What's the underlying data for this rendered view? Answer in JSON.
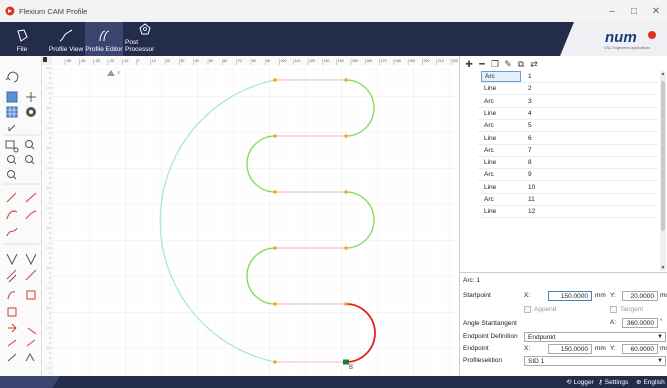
{
  "window": {
    "title": "Flexium CAM Profile"
  },
  "ribbon": {
    "tabs": [
      {
        "label": "File"
      },
      {
        "label": "Profile View"
      },
      {
        "label": "Profile Editor"
      },
      {
        "label": "Post Processor"
      }
    ],
    "active_tab": "Profile Editor",
    "brand": {
      "name": "num",
      "tagline": "CNC Engineered applications"
    }
  },
  "ruler": {
    "marks": [
      "-50",
      "-40",
      "-30",
      "-20",
      "-10",
      "0",
      "10",
      "20",
      "30",
      "40",
      "50",
      "60",
      "70",
      "80",
      "90",
      "100",
      "110",
      "120",
      "130",
      "140",
      "150",
      "160",
      "170",
      "180",
      "190",
      "200",
      "210",
      "220"
    ],
    "y_label": "Y"
  },
  "segments": [
    {
      "type": "Arc",
      "num": "1"
    },
    {
      "type": "Line",
      "num": "2"
    },
    {
      "type": "Arc",
      "num": "3"
    },
    {
      "type": "Line",
      "num": "4"
    },
    {
      "type": "Arc",
      "num": "5"
    },
    {
      "type": "Line",
      "num": "6"
    },
    {
      "type": "Arc",
      "num": "7"
    },
    {
      "type": "Line",
      "num": "8"
    },
    {
      "type": "Arc",
      "num": "9"
    },
    {
      "type": "Line",
      "num": "10"
    },
    {
      "type": "Arc",
      "num": "11"
    },
    {
      "type": "Line",
      "num": "12"
    }
  ],
  "properties": {
    "header": "Arc: 1",
    "startpoint_label": "Startpoint",
    "x_label": "X:",
    "y_label": "Y:",
    "a_label": "A:",
    "unit_mm": "mm",
    "unit_deg": "°",
    "start_x": "150.0000",
    "start_y": "20.0000",
    "append_label": "Append",
    "tangent_label": "Tangent",
    "angle_label": "Angle Starttangent",
    "angle_value": "360.0000",
    "endpoint_def_label": "Endpoint Definition",
    "endpoint_def_value": "Endpunkt",
    "endpoint_label": "Endpoint",
    "end_x": "150.0000",
    "end_y": "60.0000",
    "profile_section_label": "Profilesektion",
    "profile_section_value": "SID 1"
  },
  "statusbar": {
    "logger": "Logger",
    "settings": "Settings",
    "language": "English"
  },
  "canvas": {
    "end_marker": "B"
  },
  "colors": {
    "ribbon_bg": "#232d4b",
    "arc_green": "#7ed957",
    "line_pink": "#f4a6b8",
    "outer_arc": "#9ee3d2",
    "selected_red": "#e02020",
    "node_orange": "#f5a623"
  }
}
